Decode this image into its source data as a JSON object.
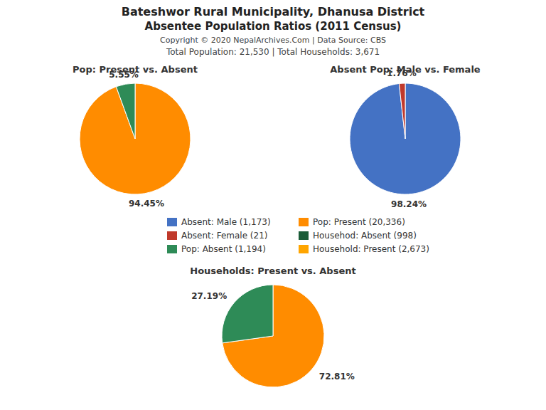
{
  "title": "Bateshwor Rural Municipality, Dhanusa District",
  "subtitle": "Absentee Population Ratios (2011 Census)",
  "annotations": [
    "Copyright © 2020 NepalArchives.Com | Data Source: CBS",
    "Total Population: 21,530 | Total Households: 3,671"
  ],
  "series": [
    {
      "name": "Absent: Male (1,173)",
      "color": "#4472C4"
    },
    {
      "name": "Absent: Female (21)",
      "color": "#C0392B"
    },
    {
      "name": "Pop: Absent (1,194)",
      "color": "#2E8B57"
    },
    {
      "name": "Pop: Present (20,336)",
      "color": "#FF8C00"
    },
    {
      "name": "Househod: Absent (998)",
      "color": "#1A5C38"
    },
    {
      "name": "Household: Present (2,673)",
      "color": "#FFA500"
    }
  ],
  "chart_data": [
    {
      "type": "pie",
      "title": "Pop: Present vs. Absent",
      "values": [
        94.45,
        5.55
      ],
      "colors": [
        "#FF8C00",
        "#2E8B57"
      ],
      "value_labels": [
        "94.45%",
        "5.55%"
      ],
      "data_labels": true
    },
    {
      "type": "pie",
      "title": "Absent Pop: Male vs. Female",
      "values": [
        98.24,
        1.76
      ],
      "colors": [
        "#4472C4",
        "#C0392B"
      ],
      "value_labels": [
        "98.24%",
        "1.76%"
      ],
      "data_labels": true
    },
    {
      "type": "pie",
      "title": "Households: Present vs. Absent",
      "values": [
        72.81,
        27.19
      ],
      "colors": [
        "#FF8C00",
        "#2E8B57"
      ],
      "value_labels": [
        "72.81%",
        "27.19%"
      ],
      "data_labels": true
    }
  ]
}
